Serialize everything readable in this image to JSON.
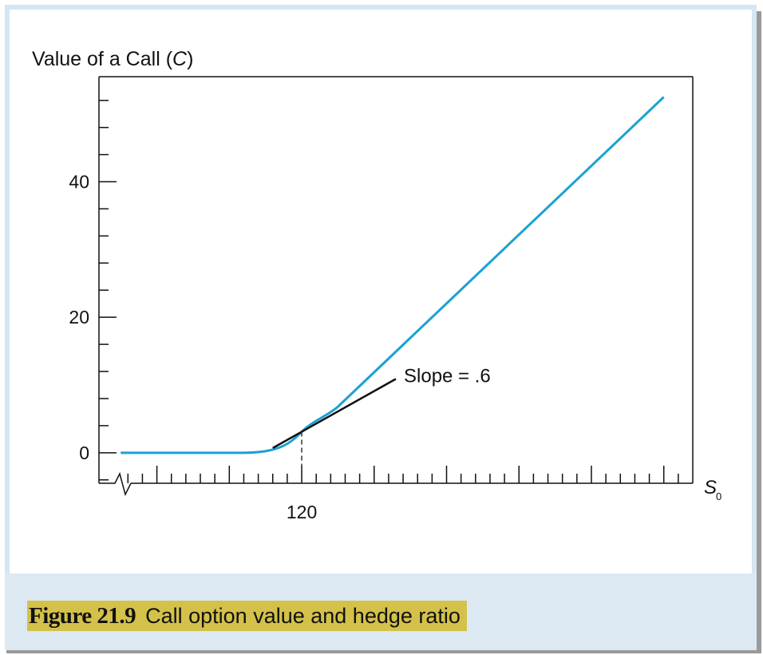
{
  "figure": {
    "number_label": "Figure 21.9",
    "caption": "Call option value and hedge ratio"
  },
  "colors": {
    "curve": "#1ba1d3",
    "tangent": "#111111",
    "axis": "#111111",
    "caption_highlight": "#d4c14a",
    "frame": "#d6e6f2"
  },
  "chart_data": {
    "type": "line",
    "ylabel_prefix": "Value of a Call (",
    "ylabel_var": "C",
    "ylabel_suffix": ")",
    "xlabel_main": "S",
    "xlabel_sub": "0",
    "x_tick_labels": [
      {
        "x": 120,
        "label": "120"
      }
    ],
    "y_tick_labels": [
      {
        "y": 0,
        "label": "0"
      },
      {
        "y": 20,
        "label": "20"
      },
      {
        "y": 40,
        "label": "40"
      }
    ],
    "xlim": [
      92,
      174
    ],
    "ylim": [
      -4.5,
      55.5
    ],
    "x_minor_step": 2,
    "x_major_step": 10,
    "y_minor_step": 4,
    "axis_break": true,
    "grid": false,
    "series": [
      {
        "values": [
          [
            95,
            0
          ],
          [
            120,
            3.1
          ],
          [
            125,
            6.8
          ],
          [
            170,
            52.5
          ]
        ]
      }
    ],
    "annotations": [
      {
        "type": "tangent",
        "at_x": 120,
        "slope": 0.6,
        "label": "Slope = .6",
        "from_x": 116,
        "to_x": 133
      },
      {
        "type": "dropline",
        "x": 120
      }
    ]
  }
}
